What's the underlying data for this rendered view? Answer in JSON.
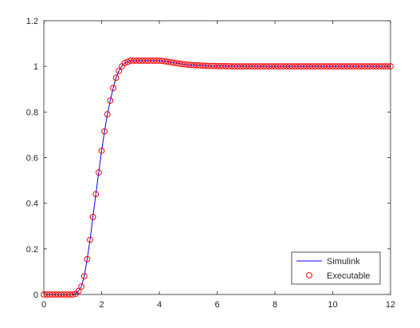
{
  "chart_data": {
    "type": "line",
    "title": "",
    "xlabel": "",
    "ylabel": "",
    "xlim": [
      0,
      12
    ],
    "ylim": [
      0,
      1.2
    ],
    "xticks": [
      0,
      2,
      4,
      6,
      8,
      10,
      12
    ],
    "yticks": [
      0,
      0.2,
      0.4,
      0.6,
      0.8,
      1,
      1.2
    ],
    "xtick_labels": [
      "0",
      "2",
      "4",
      "6",
      "8",
      "10",
      "12"
    ],
    "ytick_labels": [
      "0",
      "0.2",
      "0.4",
      "0.6",
      "0.8",
      "1",
      "1.2"
    ],
    "grid": false,
    "legend_position": "bottom-right",
    "series": [
      {
        "name": "Simulink",
        "style": "line",
        "color": "#0000ff",
        "x": [
          0,
          1.0,
          1.1,
          1.2,
          1.3,
          1.4,
          1.5,
          1.6,
          1.7,
          1.8,
          1.9,
          2.0,
          2.1,
          2.2,
          2.3,
          2.4,
          2.5,
          2.6,
          2.7,
          2.8,
          2.9,
          3.0,
          3.2,
          3.4,
          3.6,
          3.8,
          4.0,
          4.2,
          4.4,
          4.6,
          4.8,
          5.0,
          5.4,
          5.8,
          6.4,
          7.0,
          8.0,
          9.0,
          10.0,
          11.0,
          12.0
        ],
        "y": [
          0,
          0,
          0.003,
          0.015,
          0.035,
          0.08,
          0.155,
          0.24,
          0.34,
          0.44,
          0.535,
          0.63,
          0.715,
          0.79,
          0.85,
          0.905,
          0.95,
          0.98,
          1.0,
          1.015,
          1.02,
          1.025,
          1.025,
          1.025,
          1.025,
          1.025,
          1.025,
          1.022,
          1.018,
          1.014,
          1.01,
          1.007,
          1.004,
          1.002,
          1.001,
          1.0,
          1.0,
          1.0,
          1.0,
          1.0,
          1.0
        ]
      },
      {
        "name": "Executable",
        "style": "circle",
        "color": "#ff0000",
        "x": [
          0,
          0.1,
          0.2,
          0.3,
          0.4,
          0.5,
          0.6,
          0.7,
          0.8,
          0.9,
          1.0,
          1.1,
          1.2,
          1.3,
          1.4,
          1.5,
          1.6,
          1.7,
          1.8,
          1.9,
          2.0,
          2.1,
          2.2,
          2.3,
          2.4,
          2.5,
          2.6,
          2.7,
          2.8,
          2.9,
          3.0,
          3.1,
          3.2,
          3.3,
          3.4,
          3.5,
          3.6,
          3.7,
          3.8,
          3.9,
          4.0,
          4.1,
          4.2,
          4.3,
          4.4,
          4.5,
          4.6,
          4.7,
          4.8,
          4.9,
          5.0,
          5.1,
          5.2,
          5.3,
          5.4,
          5.5,
          5.6,
          5.7,
          5.8,
          5.9,
          6.0,
          6.1,
          6.2,
          6.3,
          6.4,
          6.5,
          6.6,
          6.7,
          6.8,
          6.9,
          7.0,
          7.1,
          7.2,
          7.3,
          7.4,
          7.5,
          7.6,
          7.7,
          7.8,
          7.9,
          8.0,
          8.1,
          8.2,
          8.3,
          8.4,
          8.5,
          8.6,
          8.7,
          8.8,
          8.9,
          9.0,
          9.1,
          9.2,
          9.3,
          9.4,
          9.5,
          9.6,
          9.7,
          9.8,
          9.9,
          10.0,
          10.1,
          10.2,
          10.3,
          10.4,
          10.5,
          10.6,
          10.7,
          10.8,
          10.9,
          11.0,
          11.1,
          11.2,
          11.3,
          11.4,
          11.5,
          11.6,
          11.7,
          11.8,
          11.9,
          12.0
        ],
        "y": [
          0,
          0,
          0,
          0,
          0,
          0,
          0,
          0,
          0,
          0,
          0,
          0.003,
          0.015,
          0.035,
          0.08,
          0.155,
          0.24,
          0.34,
          0.44,
          0.535,
          0.63,
          0.715,
          0.79,
          0.85,
          0.905,
          0.95,
          0.98,
          1.0,
          1.015,
          1.02,
          1.025,
          1.025,
          1.025,
          1.025,
          1.025,
          1.025,
          1.025,
          1.025,
          1.025,
          1.025,
          1.025,
          1.024,
          1.022,
          1.02,
          1.018,
          1.016,
          1.014,
          1.012,
          1.01,
          1.009,
          1.007,
          1.006,
          1.005,
          1.005,
          1.004,
          1.003,
          1.003,
          1.002,
          1.002,
          1.002,
          1.001,
          1.001,
          1.001,
          1.001,
          1.001,
          1.0,
          1.0,
          1.0,
          1.0,
          1.0,
          1.0,
          1.0,
          1.0,
          1.0,
          1.0,
          1.0,
          1.0,
          1.0,
          1.0,
          1.0,
          1.0,
          1.0,
          1.0,
          1.0,
          1.0,
          1.0,
          1.0,
          1.0,
          1.0,
          1.0,
          1.0,
          1.0,
          1.0,
          1.0,
          1.0,
          1.0,
          1.0,
          1.0,
          1.0,
          1.0,
          1.0,
          1.0,
          1.0,
          1.0,
          1.0,
          1.0,
          1.0,
          1.0,
          1.0,
          1.0,
          1.0,
          1.0,
          1.0,
          1.0,
          1.0,
          1.0,
          1.0,
          1.0,
          1.0,
          1.0,
          1.0
        ]
      }
    ]
  }
}
